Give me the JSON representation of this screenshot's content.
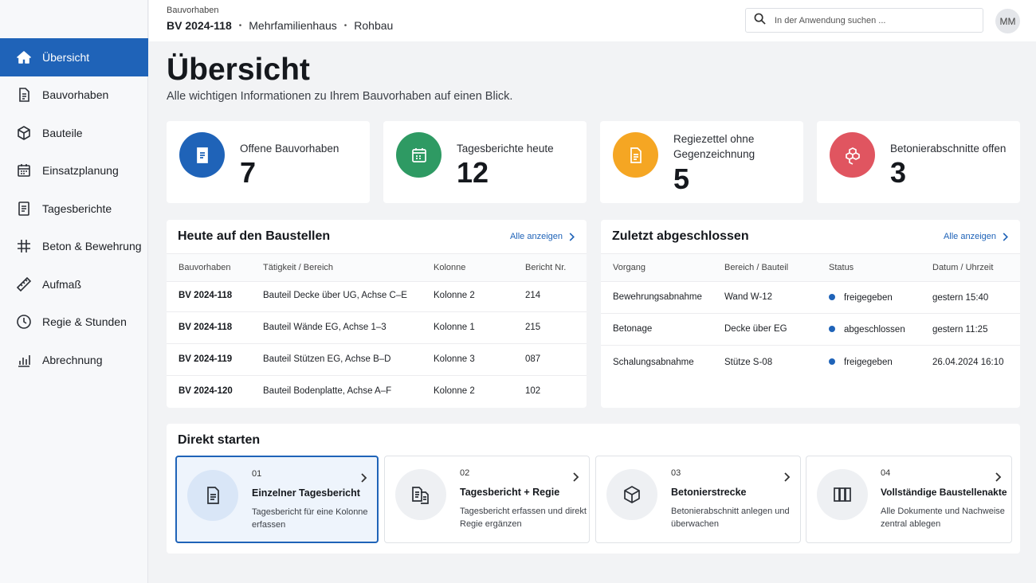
{
  "sidebar": {
    "items": [
      {
        "label": "Übersicht",
        "icon": "home-icon",
        "active": true
      },
      {
        "label": "Bauvorhaben",
        "icon": "document-icon"
      },
      {
        "label": "Bauteile",
        "icon": "cube-icon"
      },
      {
        "label": "Einsatzplanung",
        "icon": "calendar-icon"
      },
      {
        "label": "Tagesberichte",
        "icon": "report-icon"
      },
      {
        "label": "Beton & Bewehrung",
        "icon": "grid-icon"
      },
      {
        "label": "Aufmaß",
        "icon": "ruler-icon"
      },
      {
        "label": "Regie & Stunden",
        "icon": "clock-icon"
      },
      {
        "label": "Abrechnung",
        "icon": "bar-chart-icon"
      }
    ]
  },
  "header": {
    "crumb_label": "Bauvorhaben",
    "project_id": "BV 2024-118",
    "project_type": "Mehrfamilienhaus",
    "project_phase": "Rohbau",
    "search_placeholder": "In der Anwendung suchen ...",
    "avatar_initials": "MM"
  },
  "page": {
    "title": "Übersicht",
    "subtitle": "Alle wichtigen Informationen zu Ihrem Bauvorhaben auf einen Blick."
  },
  "stats": [
    {
      "label": "Offene Bauvorhaben",
      "value": "7",
      "color": "#1f63b8",
      "icon": "document-icon"
    },
    {
      "label": "Tagesberichte heute",
      "value": "12",
      "color": "#2e9a63",
      "icon": "calendar-icon"
    },
    {
      "label": "Regiezettel ohne Gegenzeichnung",
      "value": "5",
      "color": "#f5a623",
      "icon": "document-icon"
    },
    {
      "label": "Betonierabschnitte offen",
      "value": "3",
      "color": "#e05560",
      "icon": "cubes-icon"
    }
  ],
  "today": {
    "title": "Heute auf den Baustellen",
    "link": "Alle anzeigen",
    "columns": [
      "Bauvorhaben",
      "Tätigkeit / Bereich",
      "Kolonne",
      "Bericht Nr."
    ],
    "rows": [
      {
        "project": "BV 2024-118",
        "activity": "Bauteil Decke über UG, Achse C–E",
        "crew": "Kolonne 2",
        "report": "214"
      },
      {
        "project": "BV 2024-118",
        "activity": "Bauteil Wände EG, Achse 1–3",
        "crew": "Kolonne 1",
        "report": "215"
      },
      {
        "project": "BV 2024-119",
        "activity": "Bauteil Stützen EG, Achse B–D",
        "crew": "Kolonne 3",
        "report": "087"
      },
      {
        "project": "BV 2024-120",
        "activity": "Bauteil Bodenplatte, Achse A–F",
        "crew": "Kolonne 2",
        "report": "102"
      }
    ]
  },
  "recent": {
    "title": "Zuletzt abgeschlossen",
    "link": "Alle anzeigen",
    "columns": [
      "Vorgang",
      "Bereich / Bauteil",
      "Status",
      "Datum / Uhrzeit"
    ],
    "rows": [
      {
        "process": "Bewehrungsabnahme",
        "area": "Wand W-12",
        "status": "freigegeben",
        "datetime": "gestern 15:40"
      },
      {
        "process": "Betonage",
        "area": "Decke über EG",
        "status": "abgeschlossen",
        "datetime": "gestern 11:25"
      },
      {
        "process": "Schalungsabnahme",
        "area": "Stütze S-08",
        "status": "freigegeben",
        "datetime": "26.04.2024 16:10"
      }
    ]
  },
  "direct": {
    "title": "Direkt starten",
    "items": [
      {
        "num": "01",
        "title": "Einzelner Tagesbericht",
        "desc": "Tagesbericht für eine Kolonne erfassen",
        "icon": "document-icon"
      },
      {
        "num": "02",
        "title": "Tagesbericht + Regie",
        "desc": "Tagesbericht erfassen und direkt Regie ergänzen",
        "icon": "documents-icon"
      },
      {
        "num": "03",
        "title": "Betonierstrecke",
        "desc": "Betonierabschnitt anlegen und überwachen",
        "icon": "cube-icon"
      },
      {
        "num": "04",
        "title": "Vollständige Baustellenakte",
        "desc": "Alle Dokumente und Nachweise zentral ablegen",
        "icon": "binders-icon"
      }
    ]
  }
}
